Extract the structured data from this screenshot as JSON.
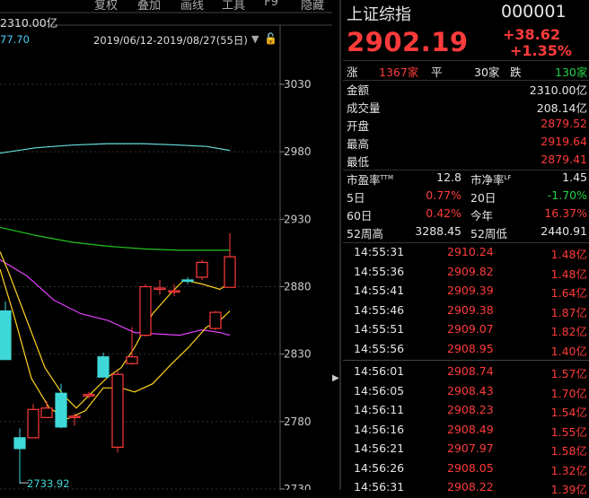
{
  "toolbar": {
    "buttons": [
      "复权",
      "叠加",
      "画线",
      "工具",
      "F9",
      "隐藏"
    ],
    "amount_label": "2310.00亿",
    "left_value": "77.70",
    "date_range": "2019/06/12-2019/08/27(55日)"
  },
  "index": {
    "name": "上证综指",
    "code": "000001",
    "price": "2902.19",
    "change": "+38.62",
    "change_pct": "+1.35%"
  },
  "breadth": {
    "up_label": "涨",
    "up_count": "1367家",
    "flat_label": "平",
    "flat_count": "30家",
    "down_label": "跌",
    "down_count": "130家"
  },
  "stats": [
    {
      "label": "金额",
      "value": "2310.00亿",
      "color": "white"
    },
    {
      "label": "成交量",
      "value": "208.14亿",
      "color": "white"
    },
    {
      "label": "开盘",
      "value": "2879.52",
      "color": "red"
    },
    {
      "label": "最高",
      "value": "2919.64",
      "color": "red"
    },
    {
      "label": "最低",
      "value": "2879.41",
      "color": "red"
    }
  ],
  "ratios": {
    "pe_label": "市盈率",
    "pe_sup": "TTM",
    "pe_value": "12.8",
    "pb_label": "市净率",
    "pb_sup": "LF",
    "pb_value": "1.45",
    "d5_label": "5日",
    "d5_value": "0.77%",
    "d20_label": "20日",
    "d20_value": "-1.70%",
    "d60_label": "60日",
    "d60_value": "0.42%",
    "ytd_label": "今年",
    "ytd_value": "16.37%",
    "hi52_label": "52周高",
    "hi52_value": "3288.45",
    "lo52_label": "52周低",
    "lo52_value": "2440.91"
  },
  "ticks_a": [
    {
      "time": "14:55:31",
      "price": "2910.24",
      "vol": "1.48亿"
    },
    {
      "time": "14:55:36",
      "price": "2909.82",
      "vol": "1.48亿"
    },
    {
      "time": "14:55:41",
      "price": "2909.39",
      "vol": "1.64亿"
    },
    {
      "time": "14:55:46",
      "price": "2909.38",
      "vol": "1.87亿"
    },
    {
      "time": "14:55:51",
      "price": "2909.07",
      "vol": "1.82亿"
    },
    {
      "time": "14:55:56",
      "price": "2908.95",
      "vol": "1.40亿"
    }
  ],
  "ticks_b": [
    {
      "time": "14:56:01",
      "price": "2908.74",
      "vol": "1.57亿"
    },
    {
      "time": "14:56:05",
      "price": "2908.43",
      "vol": "1.70亿"
    },
    {
      "time": "14:56:11",
      "price": "2908.23",
      "vol": "1.54亿"
    },
    {
      "time": "14:56:16",
      "price": "2908.49",
      "vol": "1.55亿"
    },
    {
      "time": "14:56:21",
      "price": "2907.97",
      "vol": "1.58亿"
    },
    {
      "time": "14:56:26",
      "price": "2908.05",
      "vol": "1.32亿"
    },
    {
      "time": "14:56:31",
      "price": "2908.22",
      "vol": "1.39亿"
    }
  ],
  "chart_data": {
    "type": "candlestick",
    "y_ticks": [
      "3030",
      "2980",
      "2930",
      "2880",
      "2830",
      "2780",
      "2730"
    ],
    "ylim": [
      2725,
      3060
    ],
    "low_marker": "2733.92",
    "colors": {
      "up": "#ff3b3b",
      "down": "#3fd8d8",
      "ma5": "#ffffff",
      "ma10": "#ffd21f",
      "ma20": "#e040fb",
      "ma60": "#22c422",
      "ma250": "#66dddd"
    },
    "candles": [
      {
        "o": 2862,
        "h": 2869,
        "l": 2826,
        "c": 2826
      },
      {
        "o": 2768,
        "h": 2775,
        "l": 2733.92,
        "c": 2760
      },
      {
        "o": 2768,
        "h": 2793,
        "l": 2768,
        "c": 2789
      },
      {
        "o": 2783,
        "h": 2795,
        "l": 2783,
        "c": 2790
      },
      {
        "o": 2801,
        "h": 2808,
        "l": 2775,
        "c": 2776
      },
      {
        "o": 2783,
        "h": 2786,
        "l": 2777,
        "c": 2784
      },
      {
        "o": 2800,
        "h": 2802,
        "l": 2797,
        "c": 2800
      },
      {
        "o": 2828,
        "h": 2831,
        "l": 2813,
        "c": 2813
      },
      {
        "o": 2761,
        "h": 2818,
        "l": 2757,
        "c": 2815
      },
      {
        "o": 2823,
        "h": 2850,
        "l": 2822,
        "c": 2828
      },
      {
        "o": 2844,
        "h": 2882,
        "l": 2843,
        "c": 2880
      },
      {
        "o": 2878,
        "h": 2885,
        "l": 2874,
        "c": 2879
      },
      {
        "o": 2876,
        "h": 2882,
        "l": 2873,
        "c": 2877
      },
      {
        "o": 2885,
        "h": 2887,
        "l": 2882,
        "c": 2884
      },
      {
        "o": 2887,
        "h": 2900,
        "l": 2885,
        "c": 2898
      },
      {
        "o": 2849,
        "h": 2862,
        "l": 2848,
        "c": 2861
      },
      {
        "o": 2879.52,
        "h": 2919.64,
        "l": 2879.41,
        "c": 2902.19
      }
    ],
    "ma5": [
      [
        0,
        2906
      ],
      [
        10,
        2890
      ],
      [
        30,
        2855
      ],
      [
        50,
        2820
      ],
      [
        70,
        2800
      ],
      [
        85,
        2790
      ],
      [
        100,
        2800
      ],
      [
        120,
        2813
      ],
      [
        135,
        2820
      ],
      [
        150,
        2835
      ],
      [
        170,
        2860
      ],
      [
        190,
        2875
      ],
      [
        205,
        2885
      ],
      [
        225,
        2882
      ],
      [
        245,
        2878
      ],
      [
        258,
        2884
      ]
    ],
    "ma10": [
      [
        0,
        2893
      ],
      [
        15,
        2860
      ],
      [
        35,
        2812
      ],
      [
        55,
        2790
      ],
      [
        75,
        2782
      ],
      [
        95,
        2788
      ],
      [
        115,
        2805
      ],
      [
        135,
        2805
      ],
      [
        150,
        2802
      ],
      [
        170,
        2808
      ],
      [
        190,
        2822
      ],
      [
        210,
        2835
      ],
      [
        230,
        2850
      ],
      [
        245,
        2855
      ],
      [
        256,
        2862
      ]
    ],
    "ma20": [
      [
        0,
        2900
      ],
      [
        30,
        2888
      ],
      [
        60,
        2870
      ],
      [
        90,
        2860
      ],
      [
        120,
        2855
      ],
      [
        150,
        2846
      ],
      [
        175,
        2845
      ],
      [
        200,
        2844
      ],
      [
        225,
        2848
      ],
      [
        245,
        2846
      ],
      [
        256,
        2844
      ]
    ],
    "ma60": [
      [
        0,
        2924
      ],
      [
        40,
        2918
      ],
      [
        80,
        2913
      ],
      [
        120,
        2910
      ],
      [
        160,
        2908
      ],
      [
        200,
        2907
      ],
      [
        230,
        2907
      ],
      [
        256,
        2907
      ]
    ],
    "ma250": [
      [
        0,
        2979
      ],
      [
        40,
        2983
      ],
      [
        80,
        2985
      ],
      [
        120,
        2986
      ],
      [
        160,
        2986
      ],
      [
        200,
        2985
      ],
      [
        230,
        2984
      ],
      [
        256,
        2981
      ]
    ]
  }
}
